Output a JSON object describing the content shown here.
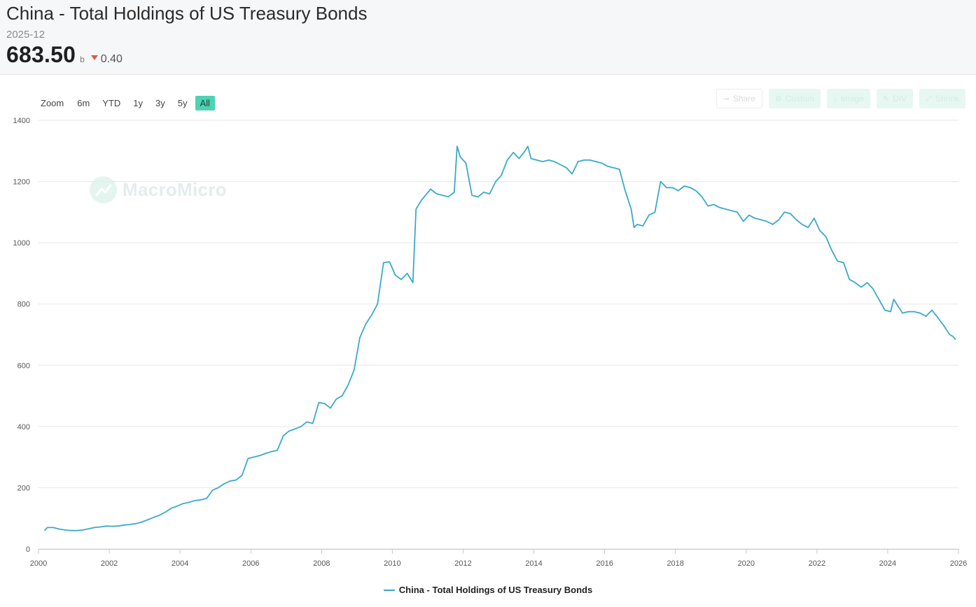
{
  "header": {
    "title": "China - Total Holdings of US Treasury Bonds",
    "date": "2025-12",
    "value": "683.50",
    "unit": "b",
    "change": "0.40"
  },
  "zoom": {
    "label": "Zoom",
    "options": [
      "6m",
      "YTD",
      "1y",
      "3y",
      "5y",
      "All"
    ],
    "active": "All"
  },
  "toolbar": {
    "share": "Share",
    "custom": "Custom",
    "image": "Image",
    "div": "DIV",
    "shrink": "Shrink"
  },
  "watermark": "MacroMicro",
  "colors": {
    "line": "#3aa9c9",
    "active_zoom": "#4fd1b3",
    "down": "#e0544a"
  },
  "chart_data": {
    "type": "line",
    "y_ticks": [
      0,
      200,
      400,
      600,
      800,
      1000,
      1200,
      1400
    ],
    "x_ticks": [
      "2000",
      "2002",
      "2004",
      "2006",
      "2008",
      "2010",
      "2012",
      "2014",
      "2016",
      "2018",
      "2020",
      "2022",
      "2024",
      "2026"
    ],
    "ylim": [
      0,
      1400
    ],
    "xlim": [
      2000,
      2026
    ],
    "legend": "China - Total Holdings of US Treasury Bonds",
    "series": [
      {
        "name": "China - Total Holdings of US Treasury Bonds",
        "points": [
          [
            2000.17,
            60
          ],
          [
            2000.25,
            70
          ],
          [
            2000.42,
            70
          ],
          [
            2000.58,
            65
          ],
          [
            2000.75,
            62
          ],
          [
            2000.92,
            60
          ],
          [
            2001.08,
            60
          ],
          [
            2001.25,
            62
          ],
          [
            2001.42,
            66
          ],
          [
            2001.58,
            70
          ],
          [
            2001.75,
            72
          ],
          [
            2001.92,
            75
          ],
          [
            2002.08,
            74
          ],
          [
            2002.25,
            75
          ],
          [
            2002.42,
            78
          ],
          [
            2002.58,
            80
          ],
          [
            2002.75,
            83
          ],
          [
            2002.92,
            88
          ],
          [
            2003.08,
            95
          ],
          [
            2003.25,
            103
          ],
          [
            2003.42,
            110
          ],
          [
            2003.58,
            120
          ],
          [
            2003.75,
            133
          ],
          [
            2003.92,
            140
          ],
          [
            2004.08,
            148
          ],
          [
            2004.25,
            152
          ],
          [
            2004.42,
            158
          ],
          [
            2004.58,
            160
          ],
          [
            2004.75,
            165
          ],
          [
            2004.92,
            192
          ],
          [
            2005.08,
            200
          ],
          [
            2005.25,
            213
          ],
          [
            2005.42,
            222
          ],
          [
            2005.58,
            225
          ],
          [
            2005.75,
            240
          ],
          [
            2005.92,
            295
          ],
          [
            2006.08,
            300
          ],
          [
            2006.25,
            305
          ],
          [
            2006.42,
            312
          ],
          [
            2006.58,
            318
          ],
          [
            2006.75,
            322
          ],
          [
            2006.92,
            370
          ],
          [
            2007.08,
            385
          ],
          [
            2007.25,
            392
          ],
          [
            2007.42,
            400
          ],
          [
            2007.58,
            415
          ],
          [
            2007.75,
            410
          ],
          [
            2007.92,
            478
          ],
          [
            2008.08,
            475
          ],
          [
            2008.25,
            460
          ],
          [
            2008.42,
            490
          ],
          [
            2008.58,
            500
          ],
          [
            2008.75,
            535
          ],
          [
            2008.92,
            585
          ],
          [
            2009.08,
            690
          ],
          [
            2009.25,
            735
          ],
          [
            2009.42,
            765
          ],
          [
            2009.58,
            800
          ],
          [
            2009.75,
            935
          ],
          [
            2009.92,
            938
          ],
          [
            2010.08,
            895
          ],
          [
            2010.25,
            880
          ],
          [
            2010.42,
            900
          ],
          [
            2010.58,
            870
          ],
          [
            2010.67,
            1110
          ],
          [
            2010.83,
            1140
          ],
          [
            2011.08,
            1175
          ],
          [
            2011.25,
            1160
          ],
          [
            2011.42,
            1155
          ],
          [
            2011.58,
            1150
          ],
          [
            2011.75,
            1165
          ],
          [
            2011.83,
            1315
          ],
          [
            2011.92,
            1280
          ],
          [
            2012.08,
            1260
          ],
          [
            2012.25,
            1155
          ],
          [
            2012.42,
            1150
          ],
          [
            2012.58,
            1165
          ],
          [
            2012.75,
            1160
          ],
          [
            2012.92,
            1200
          ],
          [
            2013.08,
            1220
          ],
          [
            2013.25,
            1270
          ],
          [
            2013.42,
            1295
          ],
          [
            2013.58,
            1275
          ],
          [
            2013.75,
            1300
          ],
          [
            2013.83,
            1315
          ],
          [
            2013.92,
            1275
          ],
          [
            2014.08,
            1270
          ],
          [
            2014.25,
            1265
          ],
          [
            2014.42,
            1270
          ],
          [
            2014.58,
            1265
          ],
          [
            2014.75,
            1255
          ],
          [
            2014.92,
            1245
          ],
          [
            2015.08,
            1225
          ],
          [
            2015.25,
            1265
          ],
          [
            2015.42,
            1270
          ],
          [
            2015.58,
            1270
          ],
          [
            2015.75,
            1265
          ],
          [
            2015.92,
            1260
          ],
          [
            2016.08,
            1250
          ],
          [
            2016.25,
            1245
          ],
          [
            2016.42,
            1240
          ],
          [
            2016.58,
            1170
          ],
          [
            2016.75,
            1110
          ],
          [
            2016.83,
            1050
          ],
          [
            2016.92,
            1060
          ],
          [
            2017.08,
            1055
          ],
          [
            2017.25,
            1090
          ],
          [
            2017.42,
            1100
          ],
          [
            2017.58,
            1200
          ],
          [
            2017.75,
            1180
          ],
          [
            2017.92,
            1180
          ],
          [
            2018.08,
            1170
          ],
          [
            2018.25,
            1185
          ],
          [
            2018.42,
            1180
          ],
          [
            2018.58,
            1170
          ],
          [
            2018.75,
            1150
          ],
          [
            2018.92,
            1120
          ],
          [
            2019.08,
            1125
          ],
          [
            2019.25,
            1115
          ],
          [
            2019.42,
            1110
          ],
          [
            2019.58,
            1105
          ],
          [
            2019.75,
            1100
          ],
          [
            2019.92,
            1070
          ],
          [
            2020.08,
            1090
          ],
          [
            2020.25,
            1080
          ],
          [
            2020.42,
            1075
          ],
          [
            2020.58,
            1070
          ],
          [
            2020.75,
            1060
          ],
          [
            2020.92,
            1075
          ],
          [
            2021.08,
            1100
          ],
          [
            2021.25,
            1095
          ],
          [
            2021.42,
            1075
          ],
          [
            2021.58,
            1060
          ],
          [
            2021.75,
            1050
          ],
          [
            2021.92,
            1080
          ],
          [
            2022.08,
            1040
          ],
          [
            2022.25,
            1020
          ],
          [
            2022.42,
            975
          ],
          [
            2022.58,
            940
          ],
          [
            2022.75,
            935
          ],
          [
            2022.92,
            880
          ],
          [
            2023.08,
            870
          ],
          [
            2023.25,
            855
          ],
          [
            2023.42,
            870
          ],
          [
            2023.58,
            850
          ],
          [
            2023.75,
            815
          ],
          [
            2023.92,
            780
          ],
          [
            2024.08,
            775
          ],
          [
            2024.17,
            815
          ],
          [
            2024.42,
            770
          ],
          [
            2024.58,
            775
          ],
          [
            2024.75,
            775
          ],
          [
            2024.92,
            770
          ],
          [
            2025.08,
            760
          ],
          [
            2025.25,
            780
          ],
          [
            2025.42,
            755
          ],
          [
            2025.58,
            730
          ],
          [
            2025.75,
            700
          ],
          [
            2025.83,
            695
          ],
          [
            2025.92,
            683.5
          ]
        ]
      }
    ]
  }
}
